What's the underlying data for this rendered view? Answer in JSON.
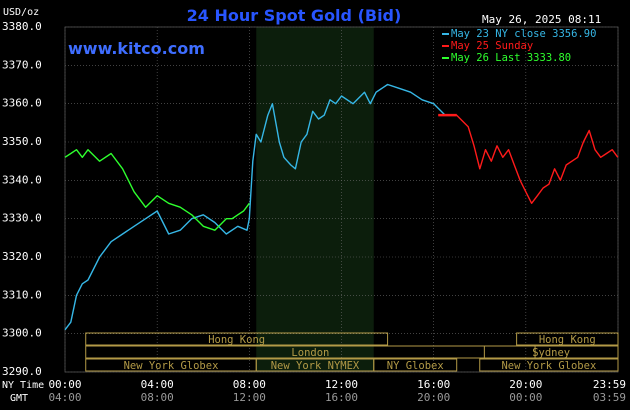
{
  "header": {
    "title": "24 Hour Spot Gold (Bid)",
    "unit": "USD/oz",
    "timestamp": "May 26, 2025 08:11",
    "watermark": "www.kitco.com"
  },
  "colors": {
    "background": "#000000",
    "plot_bg": "#000000",
    "ny_session_bg": "#0c1e0c",
    "grid": "#6a6a6a",
    "axis_text": "#ffffff",
    "title": "#2855ff",
    "watermark": "#3e6dff",
    "session_box": "#b39a47",
    "ny_close": "#36b7e6",
    "sunday": "#ff1a1a",
    "last": "#2eff2e"
  },
  "legend": [
    {
      "text": "May 23 NY close 3356.90",
      "color": "#36b7e6"
    },
    {
      "text": "May 25 Sunday",
      "color": "#ff1a1a"
    },
    {
      "text": "May 26 Last 3333.80",
      "color": "#2eff2e"
    }
  ],
  "axes": {
    "y_ticks": [
      "3380.0",
      "3370.0",
      "3360.0",
      "3350.0",
      "3340.0",
      "3330.0",
      "3320.0",
      "3310.0",
      "3300.0",
      "3290.0"
    ],
    "x_row1_label": "NY Time",
    "x_row2_label": "GMT",
    "x_ticks_ny": [
      "00:00",
      "04:00",
      "08:00",
      "12:00",
      "16:00",
      "20:00",
      "23:59"
    ],
    "x_ticks_gmt": [
      "04:00",
      "08:00",
      "12:00",
      "16:00",
      "20:00",
      "00:00",
      "03:59"
    ]
  },
  "sessions_left": [
    {
      "label": "Hong Kong",
      "start": 0.9,
      "end": 14
    },
    {
      "label": "London",
      "start": 0.9,
      "end": 20.4
    },
    {
      "label": "New York Globex",
      "start": 0.9,
      "end": 8.3
    },
    {
      "label": "New York NYMEX",
      "start": 8.3,
      "end": 13.4
    },
    {
      "label": "NY Globex",
      "start": 13.4,
      "end": 17.0
    }
  ],
  "sessions_right": [
    {
      "label": "Hong Kong",
      "start": 19.6,
      "end": 24
    },
    {
      "label": "Sydney",
      "start": 18.2,
      "end": 24
    },
    {
      "label": "New York Globex",
      "start": 18.0,
      "end": 24
    }
  ],
  "chart_data": {
    "type": "line",
    "title": "24 Hour Spot Gold (Bid)",
    "ylabel": "USD/oz",
    "ylim": [
      3290,
      3380
    ],
    "xlim_hours": [
      0,
      24
    ],
    "grid": true,
    "legend_position": "top-right",
    "ny_session_hours": [
      8.3,
      13.4
    ],
    "series": [
      {
        "name": "May 23 NY close 3356.90",
        "color": "#36b7e6",
        "x": [
          0,
          0.25,
          0.5,
          0.75,
          1,
          1.5,
          2,
          2.5,
          3,
          3.5,
          4,
          4.5,
          5,
          5.5,
          6,
          6.5,
          7,
          7.5,
          7.9,
          8,
          8.15,
          8.3,
          8.5,
          8.8,
          9,
          9.3,
          9.5,
          9.8,
          10,
          10.25,
          10.5,
          10.75,
          11,
          11.25,
          11.5,
          11.75,
          12,
          12.5,
          13,
          13.25,
          13.5,
          14,
          14.5,
          15,
          15.5,
          16,
          16.5,
          17
        ],
        "y": [
          3301,
          3303,
          3310,
          3313,
          3314,
          3320,
          3324,
          3326,
          3328,
          3330,
          3332,
          3326,
          3327,
          3330,
          3331,
          3329,
          3326,
          3328,
          3327,
          3330,
          3345,
          3352,
          3350,
          3357,
          3360,
          3350,
          3346,
          3344,
          3343,
          3350,
          3352,
          3358,
          3356,
          3357,
          3361,
          3360,
          3362,
          3360,
          3363,
          3360,
          3363,
          3365,
          3364,
          3363,
          3361,
          3360,
          3357,
          3357
        ]
      },
      {
        "name": "May 25 Sunday",
        "color": "#ff1a1a",
        "x": [
          16.2,
          17.0,
          17.5,
          17.75,
          18,
          18.25,
          18.5,
          18.75,
          19,
          19.25,
          19.5,
          19.75,
          20,
          20.25,
          20.5,
          20.75,
          21,
          21.25,
          21.5,
          21.75,
          22,
          22.25,
          22.5,
          22.75,
          23,
          23.25,
          23.5,
          23.75,
          23.99
        ],
        "y": [
          3357,
          3357,
          3354,
          3349,
          3343,
          3348,
          3345,
          3349,
          3346,
          3348,
          3344,
          3340,
          3337,
          3334,
          3336,
          3338,
          3339,
          3343,
          3340,
          3344,
          3345,
          3346,
          3350,
          3353,
          3348,
          3346,
          3347,
          3348,
          3346
        ]
      },
      {
        "name": "May 26 Last 3333.80",
        "color": "#2eff2e",
        "x": [
          0,
          0.25,
          0.5,
          0.75,
          1,
          1.5,
          2,
          2.5,
          3,
          3.5,
          4,
          4.5,
          5,
          5.5,
          6,
          6.5,
          7,
          7.25,
          7.5,
          7.75,
          8
        ],
        "y": [
          3346,
          3347,
          3348,
          3346,
          3348,
          3345,
          3347,
          3343,
          3337,
          3333,
          3336,
          3334,
          3333,
          3331,
          3328,
          3327,
          3330,
          3330,
          3331,
          3332,
          3334
        ]
      }
    ]
  }
}
